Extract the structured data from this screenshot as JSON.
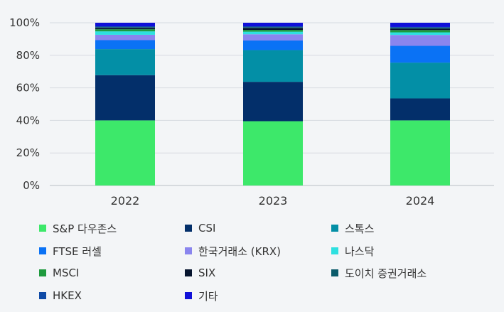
{
  "chart_data": {
    "type": "bar",
    "stacked": true,
    "categories": [
      "2022",
      "2023",
      "2024"
    ],
    "ylim": [
      0,
      100
    ],
    "y_ticks": [
      "0%",
      "20%",
      "40%",
      "60%",
      "80%",
      "100%"
    ],
    "grid": true,
    "legend_position": "bottom",
    "series": [
      {
        "name": "S&P 다우존스",
        "color": "#3de86a",
        "values": [
          40.0,
          39.5,
          40.0
        ]
      },
      {
        "name": "CSI",
        "color": "#032f6a",
        "values": [
          27.8,
          24.2,
          13.5
        ]
      },
      {
        "name": "스톡스",
        "color": "#038fa6",
        "values": [
          16.0,
          19.5,
          22.0
        ]
      },
      {
        "name": "FTSE 러셀",
        "color": "#0a72f5",
        "values": [
          5.5,
          5.9,
          10.3
        ]
      },
      {
        "name": "한국거래소 (KRX)",
        "color": "#8a85ee",
        "values": [
          3.3,
          3.8,
          6.7
        ]
      },
      {
        "name": "나스닥",
        "color": "#2ee0e0",
        "values": [
          2.1,
          1.6,
          1.6
        ]
      },
      {
        "name": "MSCI",
        "color": "#1e9a3e",
        "values": [
          1.3,
          1.1,
          1.4
        ]
      },
      {
        "name": "SIX",
        "color": "#06142e",
        "values": [
          0.8,
          1.2,
          0.9
        ]
      },
      {
        "name": "도이치 증권거래소",
        "color": "#0a5b6b",
        "values": [
          0.5,
          0.5,
          0.6
        ]
      },
      {
        "name": "HKEX",
        "color": "#0f4aa6",
        "values": [
          0.5,
          0.5,
          0.4
        ]
      },
      {
        "name": "기타",
        "color": "#1010d8",
        "values": [
          2.2,
          2.2,
          2.6
        ]
      }
    ]
  }
}
